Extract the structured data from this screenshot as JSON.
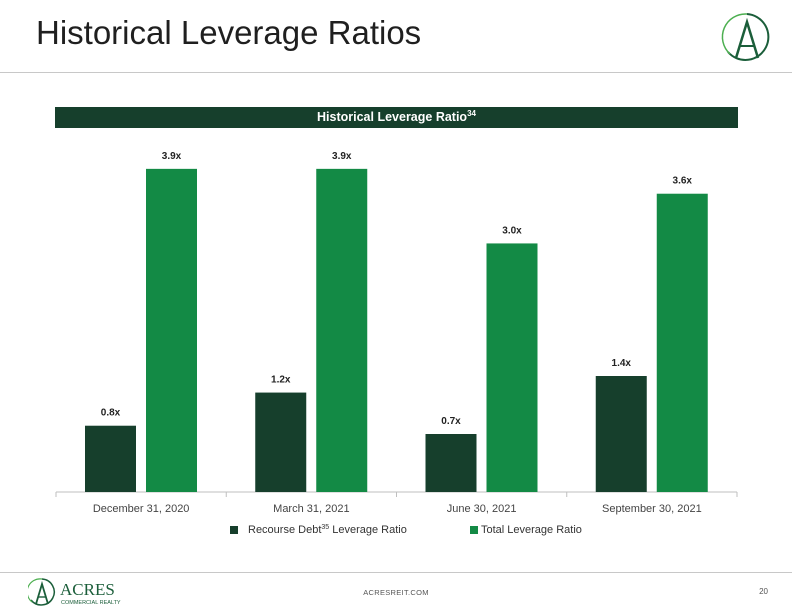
{
  "slide": {
    "title": "Historical Leverage Ratios",
    "footer_url": "ACRESREIT.COM",
    "page_number": "20",
    "logo_text": "ACRES",
    "logo_subtext": "COMMERCIAL REALTY"
  },
  "colors": {
    "recourse": "#163f2c",
    "total": "#138a45",
    "banner": "#163f2c"
  },
  "chart_data": {
    "type": "bar",
    "title": "Historical Leverage Ratio",
    "title_superscript": "34",
    "categories": [
      "December 31, 2020",
      "March 31, 2021",
      "June 30, 2021",
      "September 30, 2021"
    ],
    "series": [
      {
        "name": "Recourse Debt Leverage Ratio",
        "legend_prefix": "Recourse Debt",
        "legend_superscript": "35",
        "legend_suffix": " Leverage Ratio",
        "values": [
          0.8,
          1.2,
          0.7,
          1.4
        ],
        "labels": [
          "0.8x",
          "1.2x",
          "0.7x",
          "1.4x"
        ]
      },
      {
        "name": "Total Leverage Ratio",
        "values": [
          3.9,
          3.9,
          3.0,
          3.6
        ],
        "labels": [
          "3.9x",
          "3.9x",
          "3.0x",
          "3.6x"
        ]
      }
    ],
    "ylim": [
      0,
      4.2
    ],
    "grid": false,
    "legend_position": "bottom"
  }
}
